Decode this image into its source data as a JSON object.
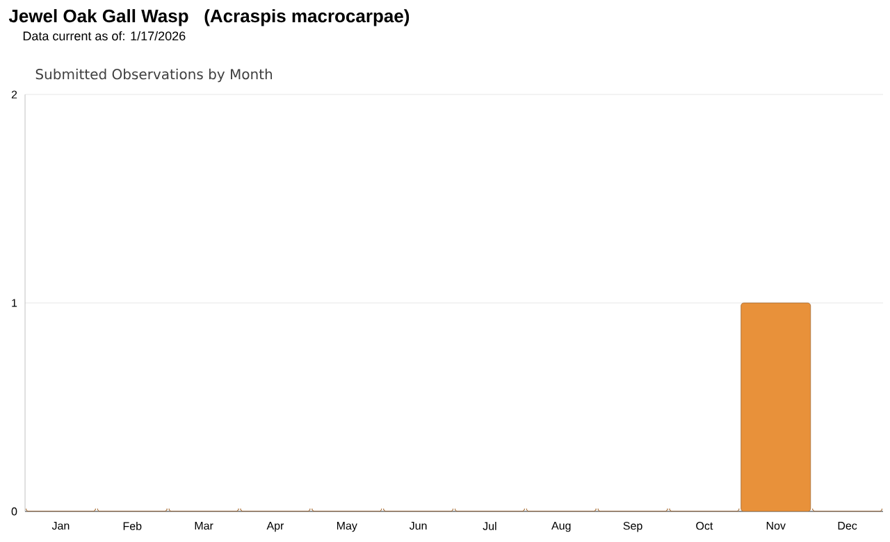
{
  "chart_data": {
    "type": "bar",
    "title": "Jewel Oak Gall Wasp   (Acraspis macrocarpae)",
    "subtitle": "Submitted Observations by Month",
    "annotations": [
      "Data current as of: 1/17/2026"
    ],
    "categories": [
      "Jan",
      "Feb",
      "Mar",
      "Apr",
      "May",
      "Jun",
      "Jul",
      "Aug",
      "Sep",
      "Oct",
      "Nov",
      "Dec"
    ],
    "values": [
      0,
      0,
      0,
      0,
      0,
      0,
      0,
      0,
      0,
      0,
      1,
      0
    ],
    "color": "#e8913a",
    "ylim": [
      0,
      2
    ],
    "yticks": [
      0,
      1,
      2
    ],
    "grid": "y"
  }
}
